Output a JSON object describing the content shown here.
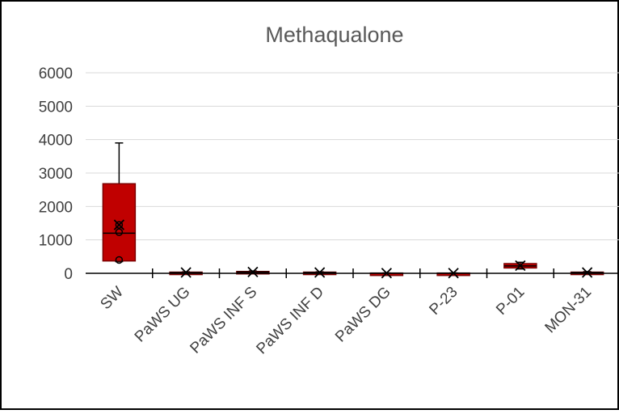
{
  "chart_data": {
    "type": "box",
    "title": "Methaqualone",
    "xlabel": "",
    "ylabel": "",
    "ylim": [
      0,
      6000
    ],
    "yticks": [
      0,
      1000,
      2000,
      3000,
      4000,
      5000,
      6000
    ],
    "grid": true,
    "legend": "none",
    "colors": {
      "box_fill": "#C00000",
      "box_edge": "#7B0000",
      "grid": "#D9D9D9",
      "axis": "#000000"
    },
    "categories": [
      "SW",
      "PaWS UG",
      "PaWS INF S",
      "PaWS INF D",
      "PaWS DG",
      "P-23",
      "P-01",
      "MON-31"
    ],
    "boxes": [
      {
        "category": "SW",
        "min": 350,
        "q1": 370,
        "median": 1200,
        "q3": 2680,
        "max": 3900,
        "mean": 1450,
        "points": [
          1450,
          1230,
          400
        ]
      },
      {
        "category": "PaWS UG",
        "min": 0,
        "q1": 10,
        "median": 20,
        "q3": 35,
        "max": 45,
        "mean": 25,
        "points": []
      },
      {
        "category": "PaWS INF S",
        "min": 10,
        "q1": 25,
        "median": 40,
        "q3": 55,
        "max": 70,
        "mean": 40,
        "points": []
      },
      {
        "category": "PaWS INF D",
        "min": 5,
        "q1": 15,
        "median": 25,
        "q3": 35,
        "max": 45,
        "mean": 25,
        "points": []
      },
      {
        "category": "PaWS DG",
        "min": 0,
        "q1": 2,
        "median": 5,
        "q3": 8,
        "max": 12,
        "mean": 5,
        "points": []
      },
      {
        "category": "P-23",
        "min": 0,
        "q1": 2,
        "median": 5,
        "q3": 8,
        "max": 12,
        "mean": 5,
        "points": []
      },
      {
        "category": "P-01",
        "min": 130,
        "q1": 160,
        "median": 220,
        "q3": 290,
        "max": 330,
        "mean": 230,
        "points": []
      },
      {
        "category": "MON-31",
        "min": 0,
        "q1": 10,
        "median": 25,
        "q3": 35,
        "max": 50,
        "mean": 25,
        "points": []
      }
    ]
  }
}
